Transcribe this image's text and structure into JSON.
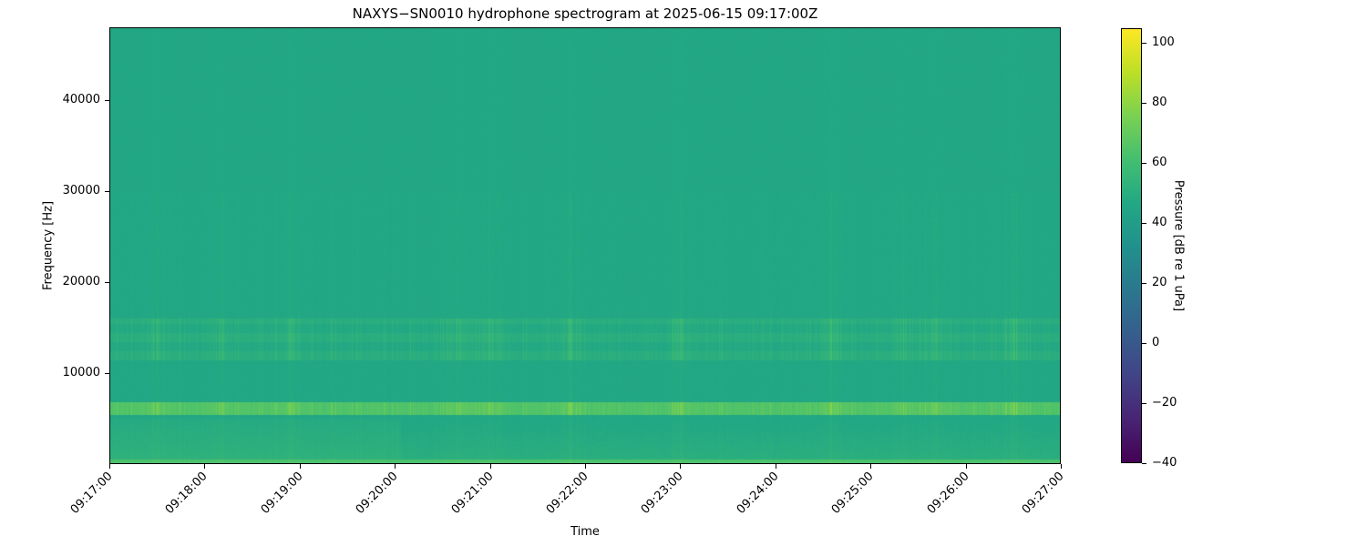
{
  "chart_data": {
    "type": "heatmap",
    "title": "NAXYS-SN0010 hydrophone spectrogram at 2025-06-15 09:17:00Z",
    "xlabel": "Time",
    "ylabel": "Frequency [Hz]",
    "xlim": [
      "09:17:00",
      "09:27:00"
    ],
    "ylim": [
      0,
      48000
    ],
    "xticks": [
      "09:17:00",
      "09:18:00",
      "09:19:00",
      "09:20:00",
      "09:21:00",
      "09:22:00",
      "09:23:00",
      "09:24:00",
      "09:25:00",
      "09:26:00",
      "09:27:00"
    ],
    "yticks": [
      10000,
      20000,
      30000,
      40000
    ],
    "colorbar": {
      "label": "Pressure [dB re 1 uPa]",
      "range": [
        -40,
        105
      ],
      "ticks": [
        -40,
        -20,
        0,
        20,
        40,
        60,
        80,
        100
      ],
      "colormap": "viridis"
    },
    "background_level_db": 45,
    "features": [
      {
        "band_hz": [
          0,
          500
        ],
        "level_db": 62
      },
      {
        "band_hz": [
          500,
          5000
        ],
        "level_db": 50
      },
      {
        "band_hz": [
          5500,
          6800
        ],
        "level_db": 62
      },
      {
        "band_hz": [
          11500,
          16000
        ],
        "level_db": 52
      }
    ],
    "transient_times": [
      "09:17:30",
      "09:18:10",
      "09:18:55",
      "09:20:40",
      "09:21:00",
      "09:21:50",
      "09:23:00",
      "09:24:35",
      "09:25:20",
      "09:25:40",
      "09:26:30"
    ],
    "grid": false
  }
}
